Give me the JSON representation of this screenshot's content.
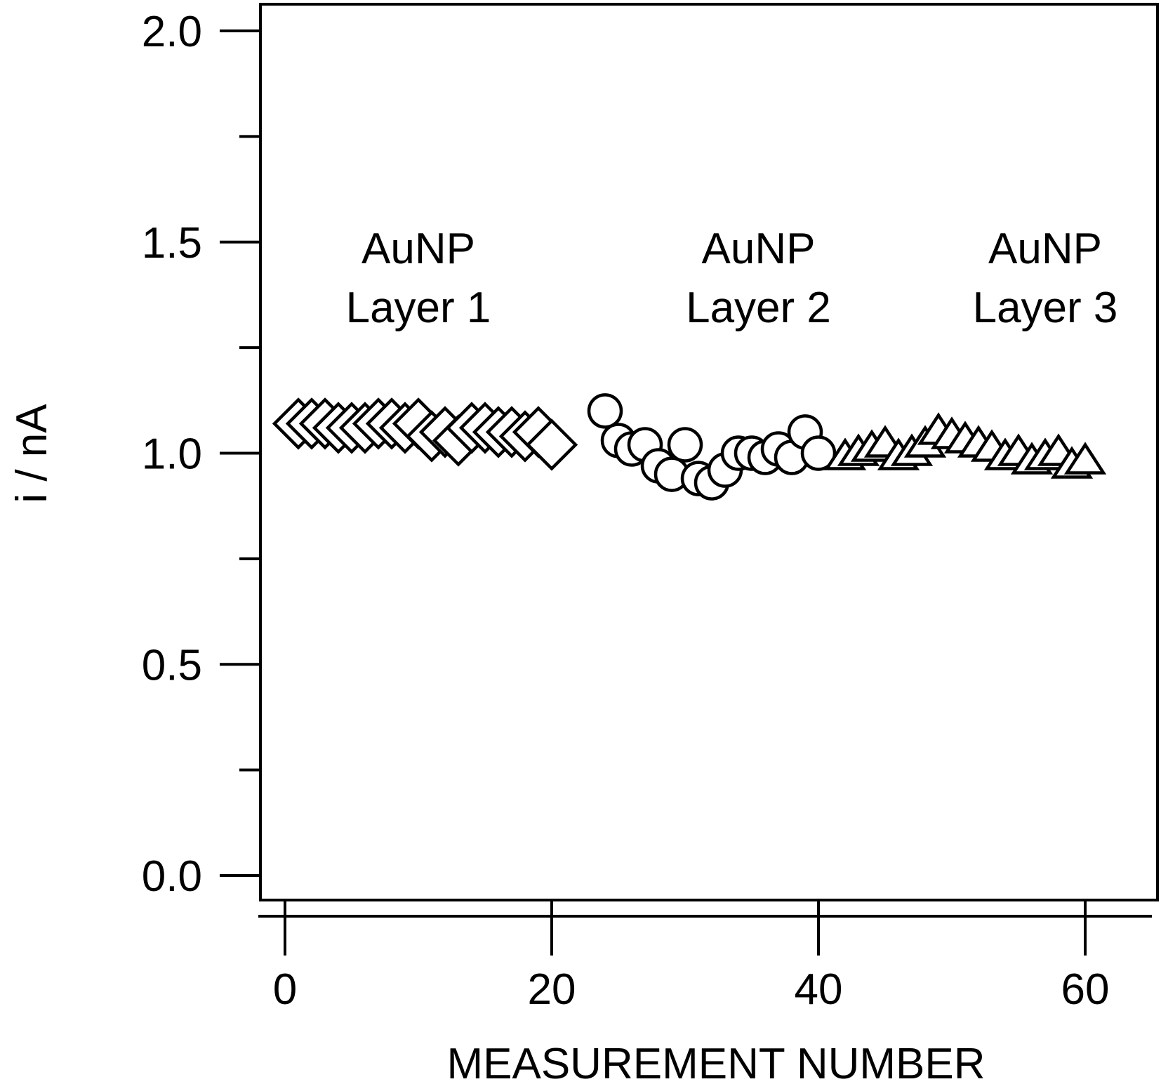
{
  "chart_data": {
    "type": "scatter",
    "xlabel": "MEASUREMENT NUMBER",
    "ylabel": "i / nA",
    "xlim": [
      -2,
      65
    ],
    "ylim": [
      -0.1,
      2.1
    ],
    "xticks": [
      0,
      20,
      40,
      60
    ],
    "xtick_labels": [
      "0",
      "20",
      "40",
      "60"
    ],
    "yticks": [
      0.0,
      0.5,
      1.0,
      1.5,
      2.0
    ],
    "ytick_labels": [
      "0.0",
      "0.5",
      "1.0",
      "1.5",
      "2.0"
    ],
    "y_minor_ticks": [
      0.25,
      0.75,
      1.25,
      1.75
    ],
    "grid": false,
    "legend": "none",
    "series": [
      {
        "marker": "diamond",
        "x": [
          1,
          2,
          3,
          4,
          5,
          6,
          7,
          8,
          9,
          10,
          11,
          12,
          13,
          14,
          15,
          16,
          17,
          18,
          19,
          20
        ],
        "y": [
          1.07,
          1.07,
          1.07,
          1.06,
          1.06,
          1.06,
          1.07,
          1.07,
          1.06,
          1.07,
          1.04,
          1.05,
          1.03,
          1.06,
          1.06,
          1.05,
          1.05,
          1.04,
          1.05,
          1.02
        ]
      },
      {
        "marker": "circle",
        "x": [
          24,
          25,
          26,
          27,
          28,
          29,
          30,
          31,
          32,
          33,
          34,
          35,
          36,
          37,
          38,
          39,
          40
        ],
        "y": [
          1.1,
          1.03,
          1.01,
          1.02,
          0.97,
          0.95,
          1.02,
          0.94,
          0.93,
          0.96,
          1.0,
          1.0,
          0.99,
          1.01,
          0.99,
          1.05,
          1.0
        ],
        "x_extra": [],
        "y_extra": []
      },
      {
        "marker": "triangle",
        "x": [
          42,
          43,
          44,
          45,
          46,
          47,
          48,
          49,
          50,
          51,
          52,
          53,
          54,
          55,
          56,
          57,
          58,
          59,
          60
        ],
        "y": [
          0.99,
          1.0,
          1.01,
          1.02,
          0.99,
          1.0,
          1.02,
          1.05,
          1.04,
          1.03,
          1.02,
          1.01,
          0.99,
          1.0,
          0.98,
          0.99,
          1.0,
          0.97,
          0.98
        ]
      }
    ],
    "annotations": [
      {
        "line1": "AuNP",
        "line2": "Layer 1",
        "x": 10,
        "y": 1.43
      },
      {
        "line1": "AuNP",
        "line2": "Layer 2",
        "x": 35.5,
        "y": 1.43
      },
      {
        "line1": "AuNP",
        "line2": "Layer 3",
        "x": 57,
        "y": 1.43
      }
    ]
  }
}
